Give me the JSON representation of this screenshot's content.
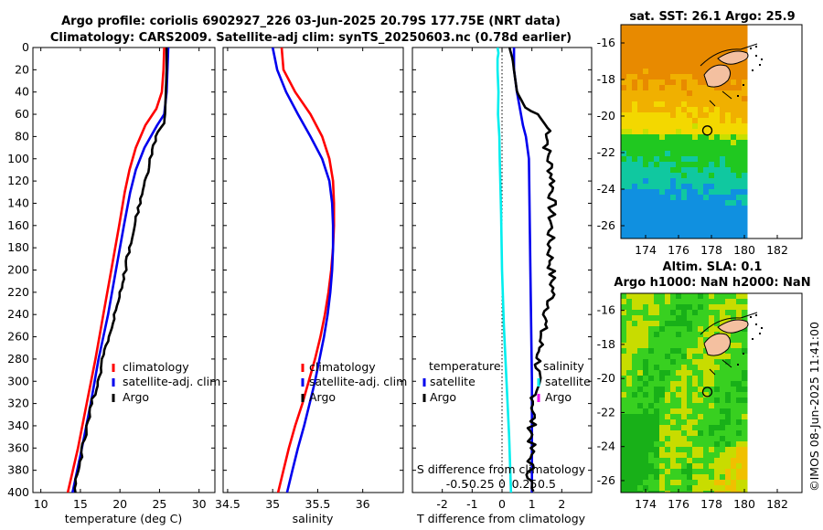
{
  "title": {
    "line1": "Argo profile: coriolis 6902927_226 03-Jun-2025 20.79S 177.75E (NRT data)",
    "line2": "Climatology: CARS2009. Satellite-adj clim: synTS_20250603.nc (0.78d earlier)"
  },
  "footer": "©IMOS 08-Jun-2025 11:41:00",
  "colors": {
    "climatology": "#ff0000",
    "satellite": "#0000ee",
    "argo": "#000000",
    "cyan": "#00eeee",
    "magenta": "#ee00ee"
  },
  "chart_data": [
    {
      "id": "temperature",
      "type": "line",
      "xlabel": "temperature (deg C)",
      "xlim": [
        9,
        32
      ],
      "xticks": [
        10,
        15,
        20,
        25,
        30
      ],
      "ylim": [
        400,
        0
      ],
      "yticks": [
        0,
        20,
        40,
        60,
        80,
        100,
        120,
        140,
        160,
        180,
        200,
        220,
        240,
        260,
        280,
        300,
        320,
        340,
        360,
        380,
        400
      ],
      "legend": [
        "climatology",
        "satellite-adj. clim",
        "Argo"
      ],
      "series": [
        {
          "name": "climatology",
          "color": "#ff0000",
          "depth": [
            0,
            20,
            40,
            55,
            70,
            90,
            110,
            130,
            160,
            200,
            240,
            280,
            320,
            360,
            400
          ],
          "values": [
            25.6,
            25.5,
            25.3,
            24.6,
            23.2,
            22.0,
            21.2,
            20.6,
            19.9,
            18.9,
            17.9,
            16.9,
            15.8,
            14.7,
            13.4
          ]
        },
        {
          "name": "satellite-adj. clim",
          "color": "#0000ee",
          "depth": [
            0,
            20,
            40,
            60,
            70,
            90,
            110,
            130,
            160,
            200,
            240,
            280,
            320,
            360,
            400
          ],
          "values": [
            26.1,
            26.0,
            25.9,
            25.6,
            24.7,
            23.1,
            22.0,
            21.3,
            20.5,
            19.5,
            18.5,
            17.3,
            16.3,
            15.2,
            14.0
          ]
        },
        {
          "name": "Argo",
          "color": "#000000",
          "depth": [
            0,
            20,
            40,
            60,
            70,
            80,
            100,
            120,
            140,
            160,
            180,
            200,
            220,
            240,
            260,
            280,
            300,
            320,
            340,
            360,
            380,
            400
          ],
          "values": [
            25.9,
            25.9,
            25.8,
            25.7,
            25.4,
            24.6,
            23.8,
            23.2,
            22.5,
            21.9,
            21.2,
            20.7,
            20.0,
            19.3,
            18.6,
            17.8,
            17.3,
            16.4,
            15.9,
            15.3,
            14.7,
            14.2
          ]
        }
      ]
    },
    {
      "id": "salinity",
      "type": "line",
      "xlabel": "salinity",
      "xlim": [
        34.45,
        36.45
      ],
      "xticks": [
        34.5,
        35,
        35.5,
        36
      ],
      "ylim": [
        400,
        0
      ],
      "legend": [
        "climatology",
        "satellite-adj. clim",
        "Argo"
      ],
      "series": [
        {
          "name": "climatology",
          "color": "#ff0000",
          "depth": [
            0,
            20,
            40,
            60,
            80,
            100,
            120,
            140,
            160,
            180,
            200,
            220,
            240,
            260,
            280,
            300,
            320,
            340,
            360,
            380,
            400
          ],
          "values": [
            35.1,
            35.12,
            35.25,
            35.42,
            35.55,
            35.63,
            35.67,
            35.68,
            35.68,
            35.67,
            35.65,
            35.62,
            35.58,
            35.53,
            35.47,
            35.4,
            35.33,
            35.25,
            35.18,
            35.12,
            35.06
          ]
        },
        {
          "name": "satellite-adj. clim",
          "color": "#0000ee",
          "depth": [
            0,
            20,
            40,
            60,
            80,
            100,
            120,
            140,
            160,
            180,
            200,
            220,
            240,
            260,
            280,
            300,
            320,
            340,
            360,
            380,
            400
          ],
          "values": [
            35.0,
            35.05,
            35.15,
            35.28,
            35.42,
            35.55,
            35.63,
            35.66,
            35.67,
            35.67,
            35.66,
            35.64,
            35.61,
            35.57,
            35.52,
            35.47,
            35.41,
            35.35,
            35.28,
            35.22,
            35.16
          ]
        },
        {
          "name": "Argo",
          "color": "#000000",
          "depth": [],
          "values": []
        }
      ]
    },
    {
      "id": "difference",
      "type": "line",
      "xlabel": "T difference from climatology",
      "xlabel2": "S difference from climatology",
      "xlim": [
        -3,
        3
      ],
      "xticks": [
        -2,
        -1,
        0,
        1,
        2
      ],
      "xlim2": [
        -1.0,
        1.0
      ],
      "xticks2": [
        -0.5,
        -0.25,
        0,
        0.25,
        0.5
      ],
      "xticklabels2": [
        "-0.5",
        "-0.25",
        "0",
        "0.25",
        "0.5"
      ],
      "ylim": [
        400,
        0
      ],
      "legend_left_title": "temperature",
      "legend_left": [
        "satellite",
        "Argo"
      ],
      "legend_right_title": "salinity",
      "legend_right": [
        "satellite",
        "Argo"
      ],
      "series": [
        {
          "name": "T satellite",
          "color": "#0000ee",
          "depth": [
            0,
            20,
            30,
            40,
            70,
            80,
            100,
            200,
            300,
            400
          ],
          "values": [
            0.4,
            0.4,
            0.45,
            0.5,
            0.7,
            0.8,
            0.9,
            0.95,
            1.0,
            1.0
          ]
        },
        {
          "name": "S satellite",
          "color": "#00eeee",
          "depth": [
            0,
            5,
            10,
            20,
            40,
            60,
            80,
            100,
            150,
            200,
            250,
            300,
            350,
            400
          ],
          "values": [
            -0.05,
            -0.04,
            -0.05,
            -0.05,
            -0.04,
            -0.045,
            -0.03,
            -0.025,
            -0.01,
            0.0,
            0.02,
            0.05,
            0.08,
            0.1
          ]
        },
        {
          "name": "T Argo",
          "color": "#000000",
          "depth": [],
          "values": []
        }
      ]
    },
    {
      "id": "sst_map",
      "type": "heatmap",
      "title": "sat. SST: 26.1 Argo: 25.9",
      "xlim": [
        172.5,
        183.5
      ],
      "ylim": [
        -26.7,
        -15.0
      ],
      "xticks": [
        174,
        176,
        178,
        180,
        182
      ],
      "yticks": [
        -16,
        -18,
        -20,
        -22,
        -24,
        -26
      ],
      "yticklabels": [
        "-16",
        "-18",
        "-20",
        "-22",
        "-24",
        "-26"
      ],
      "profile_location": [
        177.75,
        -20.79
      ]
    },
    {
      "id": "sla_map",
      "type": "heatmap",
      "title1": "Altim. SLA: 0.1",
      "title2": "Argo h1000: NaN h2000: NaN",
      "xlim": [
        172.5,
        183.5
      ],
      "ylim": [
        -26.7,
        -15.0
      ],
      "xticks": [
        174,
        176,
        178,
        180,
        182
      ],
      "yticks": [
        -16,
        -18,
        -20,
        -22,
        -24,
        -26
      ],
      "yticklabels": [
        "-16",
        "-18",
        "-20",
        "-22",
        "-24",
        "-26"
      ],
      "profile_location": [
        177.75,
        -20.79
      ]
    }
  ]
}
